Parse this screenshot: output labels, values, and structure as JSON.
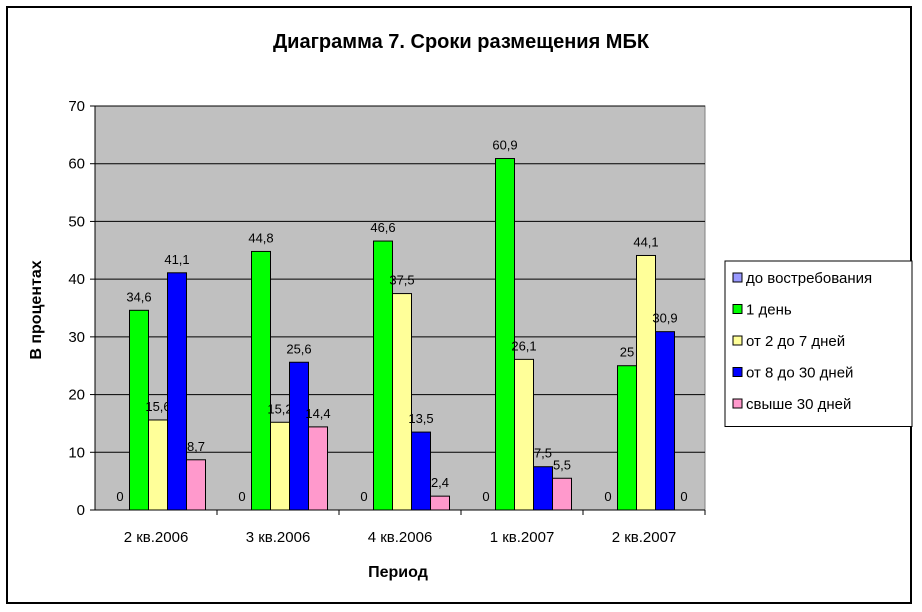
{
  "chart_data": {
    "type": "bar",
    "title": "Диаграмма 7. Сроки размещения МБК",
    "xlabel": "Период",
    "ylabel": "В процентах",
    "ylim": [
      0,
      70
    ],
    "yticks": [
      "0",
      "10",
      "20",
      "30",
      "40",
      "50",
      "60",
      "70"
    ],
    "grid": true,
    "legend_position": "right",
    "categories": [
      "2 кв.2006",
      "3 кв.2006",
      "4 кв.2006",
      "1 кв.2007",
      "2 кв.2007"
    ],
    "series": [
      {
        "name": "до востребования",
        "color": "#9999ff",
        "values": [
          0,
          0,
          0,
          0,
          0
        ],
        "labels": [
          "0",
          "0",
          "0",
          "0",
          "0"
        ]
      },
      {
        "name": "1 день",
        "color": "#00ff00",
        "values": [
          34.6,
          44.8,
          46.6,
          60.9,
          25
        ],
        "labels": [
          "34,6",
          "44,8",
          "46,6",
          "60,9",
          "25"
        ]
      },
      {
        "name": "от 2 до 7 дней",
        "color": "#ffff99",
        "values": [
          15.6,
          15.2,
          37.5,
          26.1,
          44.1
        ],
        "labels": [
          "15,6",
          "15,2",
          "37,5",
          "26,1",
          "44,1"
        ]
      },
      {
        "name": "от 8 до 30 дней",
        "color": "#0000ff",
        "values": [
          41.1,
          25.6,
          13.5,
          7.5,
          30.9
        ],
        "labels": [
          "41,1",
          "25,6",
          "13,5",
          "7,5",
          "30,9"
        ]
      },
      {
        "name": "свыше 30 дней",
        "color": "#ff99cc",
        "values": [
          8.7,
          14.4,
          2.4,
          5.5,
          0
        ],
        "labels": [
          "8,7",
          "14,4",
          "2,4",
          "5,5",
          "0"
        ]
      }
    ],
    "plot_background": "#c0c0c0"
  }
}
